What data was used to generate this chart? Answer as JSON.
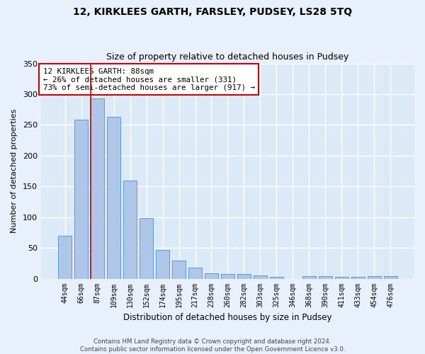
{
  "title": "12, KIRKLEES GARTH, FARSLEY, PUDSEY, LS28 5TQ",
  "subtitle": "Size of property relative to detached houses in Pudsey",
  "xlabel": "Distribution of detached houses by size in Pudsey",
  "ylabel": "Number of detached properties",
  "bar_color": "#aec6e8",
  "bar_edge_color": "#5b9bd5",
  "background_color": "#dce9f7",
  "fig_background_color": "#e8f0fb",
  "grid_color": "#ffffff",
  "categories": [
    "44sqm",
    "66sqm",
    "87sqm",
    "109sqm",
    "130sqm",
    "152sqm",
    "174sqm",
    "195sqm",
    "217sqm",
    "238sqm",
    "260sqm",
    "282sqm",
    "303sqm",
    "325sqm",
    "346sqm",
    "368sqm",
    "390sqm",
    "411sqm",
    "433sqm",
    "454sqm",
    "476sqm"
  ],
  "values": [
    70,
    258,
    293,
    263,
    160,
    98,
    47,
    29,
    18,
    9,
    7,
    7,
    5,
    3,
    0,
    4,
    4,
    3,
    3,
    4,
    4
  ],
  "ylim": [
    0,
    350
  ],
  "yticks": [
    0,
    50,
    100,
    150,
    200,
    250,
    300,
    350
  ],
  "property_line_index": 2,
  "bar_width": 0.85,
  "annotation_text": "12 KIRKLEES GARTH: 88sqm\n← 26% of detached houses are smaller (331)\n73% of semi-detached houses are larger (917) →",
  "annotation_box_color": "#ffffff",
  "annotation_border_color": "#cc0000",
  "footer_line1": "Contains HM Land Registry data © Crown copyright and database right 2024.",
  "footer_line2": "Contains public sector information licensed under the Open Government Licence v3.0."
}
